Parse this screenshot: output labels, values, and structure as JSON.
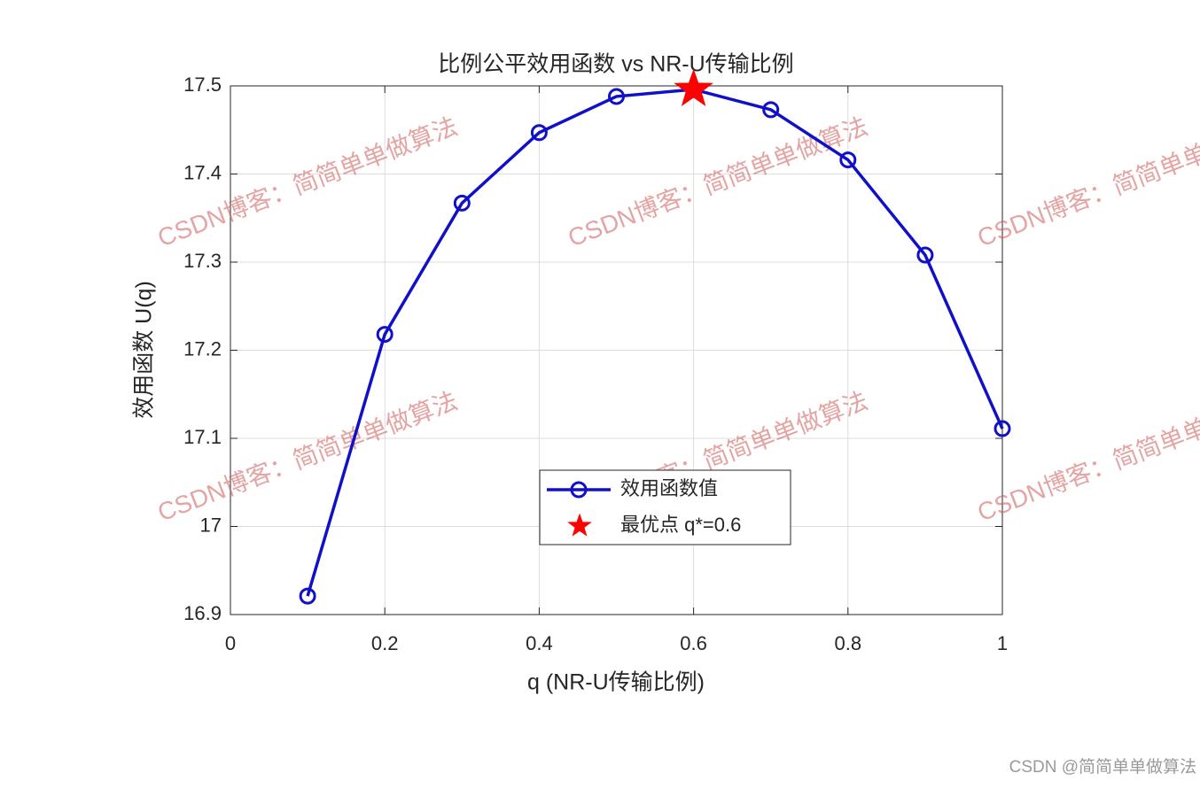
{
  "chart_data": {
    "type": "line",
    "title": "比例公平效用函数 vs NR-U传输比例",
    "xlabel": "q (NR-U传输比例)",
    "ylabel": "效用函数 U(q)",
    "x": [
      0.1,
      0.2,
      0.3,
      0.4,
      0.5,
      0.6,
      0.7,
      0.8,
      0.9,
      1.0
    ],
    "series": [
      {
        "name": "效用函数值",
        "color": "#1010c8",
        "marker": "circle",
        "values": [
          16.921,
          17.218,
          17.367,
          17.447,
          17.488,
          17.496,
          17.473,
          17.416,
          17.308,
          17.111
        ]
      },
      {
        "name": "最优点 q*=0.6",
        "color": "#ff0000",
        "marker": "star",
        "x": [
          0.6
        ],
        "values": [
          17.496
        ]
      }
    ],
    "xlim": [
      0,
      1
    ],
    "xticks": [
      0,
      0.2,
      0.4,
      0.6,
      0.8,
      1
    ],
    "ylim": [
      16.9,
      17.5
    ],
    "yticks": [
      16.9,
      17,
      17.1,
      17.2,
      17.3,
      17.4,
      17.5
    ],
    "grid": true,
    "watermark": "CSDN博客：简简单单做算法",
    "footer_watermark": "CSDN @简简单单做算法"
  }
}
